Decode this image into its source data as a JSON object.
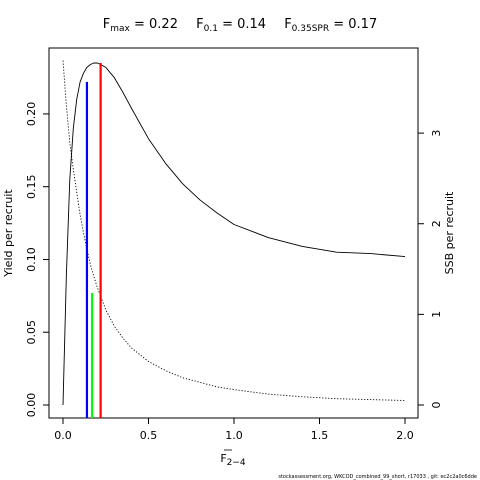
{
  "chart_data": {
    "type": "line",
    "title_parts": [
      {
        "main": "F",
        "sub": "max",
        "rest": " = 0.22"
      },
      {
        "main": "F",
        "sub": "0.1",
        "rest": " = 0.14"
      },
      {
        "main": "F",
        "sub": "0.35SPR",
        "rest": " = 0.17"
      }
    ],
    "xlabel_main": "F",
    "xlabel_sub": "2−4",
    "ylabel_left": "Yield per recruit",
    "ylabel_right": "SSB per recruit",
    "xlim": [
      0,
      2
    ],
    "ylim_left": [
      0,
      0.235
    ],
    "ylim_right": [
      0,
      3.95
    ],
    "x_ticks": [
      0,
      0.5,
      1,
      1.5,
      2
    ],
    "x_tick_labels": [
      "0.0",
      "0.5",
      "1.0",
      "1.5",
      "2.0"
    ],
    "y_left_ticks": [
      0,
      0.05,
      0.1,
      0.15,
      0.2
    ],
    "y_left_tick_labels": [
      "0.00",
      "0.05",
      "0.10",
      "0.15",
      "0.20"
    ],
    "y_right_ticks": [
      0,
      1,
      2,
      3
    ],
    "y_right_tick_labels": [
      "0",
      "1",
      "2",
      "3"
    ],
    "series": [
      {
        "role": "yield",
        "axis": "left",
        "style": "solid",
        "color": "#000000",
        "x": [
          0,
          0.02,
          0.04,
          0.06,
          0.08,
          0.1,
          0.12,
          0.14,
          0.16,
          0.18,
          0.2,
          0.22,
          0.25,
          0.3,
          0.35,
          0.4,
          0.5,
          0.6,
          0.7,
          0.8,
          0.9,
          1.0,
          1.2,
          1.4,
          1.6,
          1.8,
          2.0
        ],
        "y": [
          0,
          0.09,
          0.155,
          0.19,
          0.21,
          0.222,
          0.228,
          0.232,
          0.234,
          0.235,
          0.235,
          0.234,
          0.232,
          0.225,
          0.215,
          0.204,
          0.183,
          0.166,
          0.152,
          0.141,
          0.132,
          0.124,
          0.115,
          0.109,
          0.105,
          0.104,
          0.102
        ]
      },
      {
        "role": "ssb",
        "axis": "right",
        "style": "dotted",
        "color": "#000000",
        "x": [
          0,
          0.02,
          0.04,
          0.06,
          0.08,
          0.1,
          0.12,
          0.14,
          0.16,
          0.18,
          0.2,
          0.25,
          0.3,
          0.35,
          0.4,
          0.5,
          0.6,
          0.7,
          0.8,
          0.9,
          1.0,
          1.2,
          1.4,
          1.6,
          1.8,
          2.0
        ],
        "y": [
          3.8,
          3.3,
          2.9,
          2.6,
          2.35,
          2.1,
          1.9,
          1.72,
          1.55,
          1.42,
          1.3,
          1.05,
          0.87,
          0.74,
          0.63,
          0.48,
          0.38,
          0.3,
          0.25,
          0.2,
          0.17,
          0.12,
          0.09,
          0.07,
          0.06,
          0.05
        ]
      }
    ],
    "reference_lines": [
      {
        "label": "F0.1",
        "x": 0.14,
        "y_top": 0.222,
        "color": "#0000ff"
      },
      {
        "label": "F0.35SPR",
        "x": 0.17,
        "y_top": 0.077,
        "color": "#00ff00"
      },
      {
        "label": "Fmax",
        "x": 0.22,
        "y_top": 0.235,
        "color": "#ff0000"
      }
    ],
    "footer": "stockassessment.org, WKCOD_combined_99_short, r17033 , git: ec2c2a0c6dde"
  }
}
